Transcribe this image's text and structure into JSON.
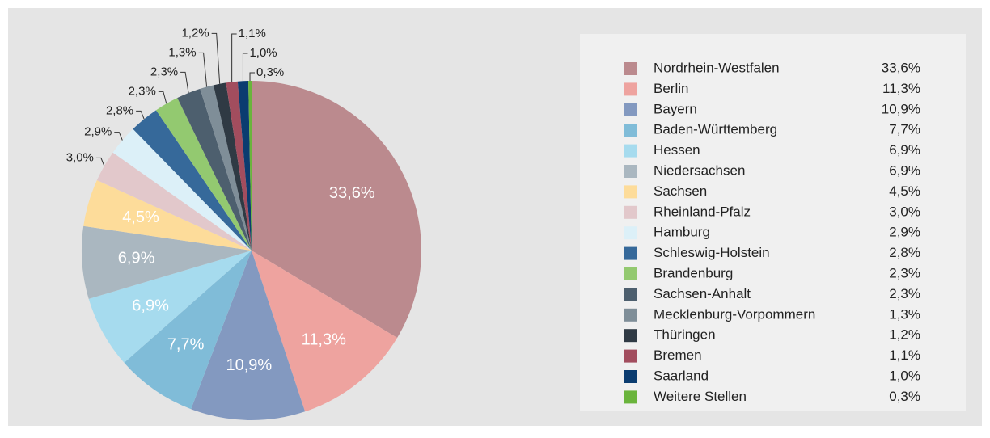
{
  "chart_data": {
    "type": "pie",
    "categories": [
      "Nordrhein-Westfalen",
      "Berlin",
      "Bayern",
      "Baden-Württemberg",
      "Hessen",
      "Niedersachsen",
      "Sachsen",
      "Rheinland-Pfalz",
      "Hamburg",
      "Schleswig-Holstein",
      "Brandenburg",
      "Sachsen-Anhalt",
      "Mecklenburg-Vorpommern",
      "Thüringen",
      "Bremen",
      "Saarland",
      "Weitere Stellen"
    ],
    "values": [
      33.6,
      11.3,
      10.9,
      7.7,
      6.9,
      6.9,
      4.5,
      3.0,
      2.9,
      2.8,
      2.3,
      2.3,
      1.3,
      1.2,
      1.1,
      1.0,
      0.3
    ],
    "value_labels": [
      "33,6%",
      "11,3%",
      "10,9%",
      "7,7%",
      "6,9%",
      "6,9%",
      "4,5%",
      "3,0%",
      "2,9%",
      "2,8%",
      "2,3%",
      "2,3%",
      "1,3%",
      "1,2%",
      "1,1%",
      "1,0%",
      "0,3%"
    ],
    "colors": [
      "#bb8a8e",
      "#eea39f",
      "#8399c0",
      "#80bcd8",
      "#a6dbee",
      "#aab7c0",
      "#fddc9a",
      "#e2c8cb",
      "#dcf0f8",
      "#36699a",
      "#93c970",
      "#4d5f6e",
      "#7f8e98",
      "#2f3a44",
      "#a24d5e",
      "#0b3c70",
      "#6ab43c"
    ],
    "legend": "right"
  }
}
